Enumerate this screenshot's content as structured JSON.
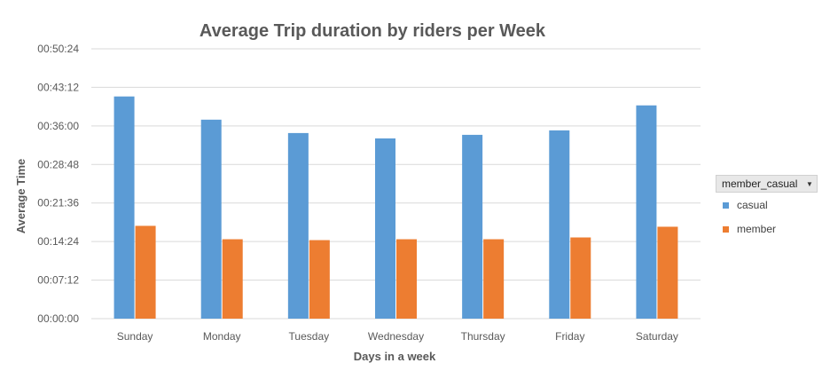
{
  "chart_data": {
    "type": "bar",
    "title": "Average Trip duration by riders per Week",
    "xlabel": "Days in a week",
    "ylabel": "Average Time",
    "categories": [
      "Sunday",
      "Monday",
      "Tuesday",
      "Wednesday",
      "Thursday",
      "Friday",
      "Saturday"
    ],
    "y_ticks": [
      "00:00:00",
      "00:07:12",
      "00:14:24",
      "00:21:36",
      "00:28:48",
      "00:36:00",
      "00:43:12",
      "00:50:24"
    ],
    "ylim_seconds": [
      0,
      3024
    ],
    "grid": true,
    "legend_position": "right",
    "legend_field": "member_casual",
    "series": [
      {
        "name": "casual",
        "color": "#5b9bd5",
        "values_seconds": [
          2490,
          2230,
          2080,
          2020,
          2060,
          2110,
          2390
        ]
      },
      {
        "name": "member",
        "color": "#ed7d31",
        "values_seconds": [
          1040,
          890,
          880,
          890,
          890,
          910,
          1030
        ]
      }
    ]
  }
}
